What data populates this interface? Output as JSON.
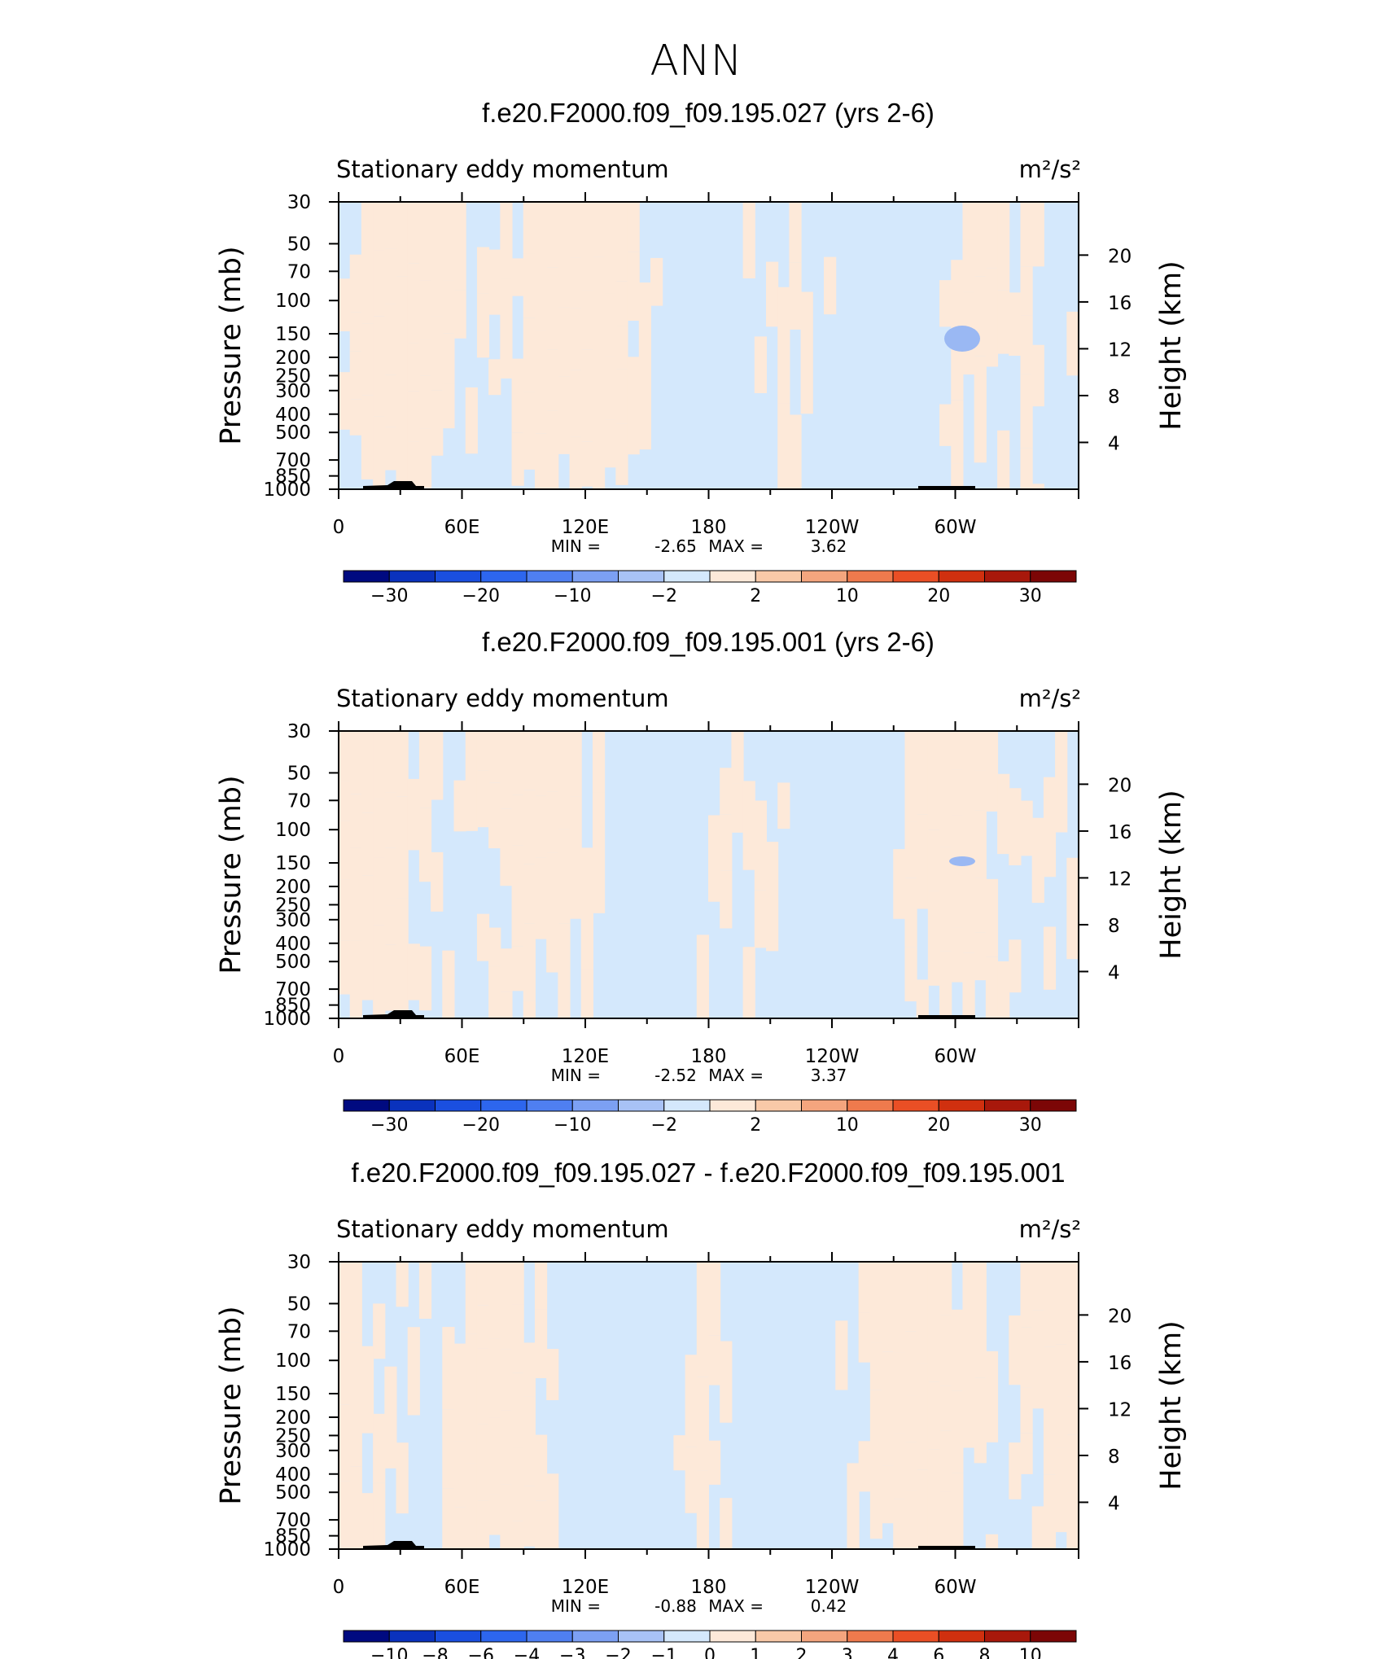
{
  "figure_title": "ANN",
  "chart_data": [
    {
      "type": "heatmap",
      "title": "f.e20.F2000.f09_f09.195.027 (yrs 2-6)",
      "subtitle_left": "Stationary eddy momentum",
      "units": "m²/s²",
      "ylabel_left": "Pressure (mb)",
      "ylabel_right": "Height (km)",
      "x_ticks": [
        "0",
        "60E",
        "120E",
        "180",
        "120W",
        "60W"
      ],
      "y_ticks": [
        "30",
        "50",
        "70",
        "100",
        "150",
        "200",
        "250",
        "300",
        "400",
        "500",
        "700",
        "850",
        "1000"
      ],
      "y_ticks_right": [
        "20",
        "16",
        "12",
        "8",
        "4"
      ],
      "min_label": "MIN =",
      "min": "-2.65",
      "max_label": "MAX =",
      "max": "3.62",
      "colorbar_labels": [
        "-30",
        "-20",
        "-10",
        "-2",
        "2",
        "10",
        "20",
        "30"
      ],
      "colorbar_colors": [
        "#000a80",
        "#0a32bd",
        "#1a4fe0",
        "#2d66ee",
        "#4f7ff1",
        "#7ca0f3",
        "#a8c2f6",
        "#d4e8fc",
        "#fde9d9",
        "#f9c9a8",
        "#f4a57e",
        "#ef7a4d",
        "#ea4f25",
        "#d0300f",
        "#a8180b",
        "#7c0606"
      ],
      "value_range": [
        -2.65,
        3.62
      ]
    },
    {
      "type": "heatmap",
      "title": "f.e20.F2000.f09_f09.195.001 (yrs 2-6)",
      "subtitle_left": "Stationary eddy momentum",
      "units": "m²/s²",
      "ylabel_left": "Pressure (mb)",
      "ylabel_right": "Height (km)",
      "x_ticks": [
        "0",
        "60E",
        "120E",
        "180",
        "120W",
        "60W"
      ],
      "y_ticks": [
        "30",
        "50",
        "70",
        "100",
        "150",
        "200",
        "250",
        "300",
        "400",
        "500",
        "700",
        "850",
        "1000"
      ],
      "y_ticks_right": [
        "20",
        "16",
        "12",
        "8",
        "4"
      ],
      "min_label": "MIN =",
      "min": "-2.52",
      "max_label": "MAX =",
      "max": "3.37",
      "colorbar_labels": [
        "-30",
        "-20",
        "-10",
        "-2",
        "2",
        "10",
        "20",
        "30"
      ],
      "colorbar_colors": [
        "#000a80",
        "#0a32bd",
        "#1a4fe0",
        "#2d66ee",
        "#4f7ff1",
        "#7ca0f3",
        "#a8c2f6",
        "#d4e8fc",
        "#fde9d9",
        "#f9c9a8",
        "#f4a57e",
        "#ef7a4d",
        "#ea4f25",
        "#d0300f",
        "#a8180b",
        "#7c0606"
      ],
      "value_range": [
        -2.52,
        3.37
      ]
    },
    {
      "type": "heatmap",
      "title": "f.e20.F2000.f09_f09.195.027 - f.e20.F2000.f09_f09.195.001",
      "subtitle_left": "Stationary eddy momentum",
      "units": "m²/s²",
      "ylabel_left": "Pressure (mb)",
      "ylabel_right": "Height (km)",
      "x_ticks": [
        "0",
        "60E",
        "120E",
        "180",
        "120W",
        "60W"
      ],
      "y_ticks": [
        "30",
        "50",
        "70",
        "100",
        "150",
        "200",
        "250",
        "300",
        "400",
        "500",
        "700",
        "850",
        "1000"
      ],
      "y_ticks_right": [
        "20",
        "16",
        "12",
        "8",
        "4"
      ],
      "min_label": "MIN =",
      "min": "-0.88",
      "max_label": "MAX =",
      "max": "0.42",
      "colorbar_labels": [
        "-10",
        "-8",
        "-6",
        "-4",
        "-3",
        "-2",
        "-1",
        "0",
        "1",
        "2",
        "3",
        "4",
        "6",
        "8",
        "10"
      ],
      "colorbar_colors": [
        "#000a80",
        "#0a32bd",
        "#1a4fe0",
        "#2d66ee",
        "#4f7ff1",
        "#7ca0f3",
        "#a8c2f6",
        "#d4e8fc",
        "#fde9d9",
        "#f9c9a8",
        "#f4a57e",
        "#ef7a4d",
        "#ea4f25",
        "#d0300f",
        "#a8180b",
        "#7c0606"
      ],
      "value_range": [
        -0.88,
        0.42
      ]
    }
  ]
}
